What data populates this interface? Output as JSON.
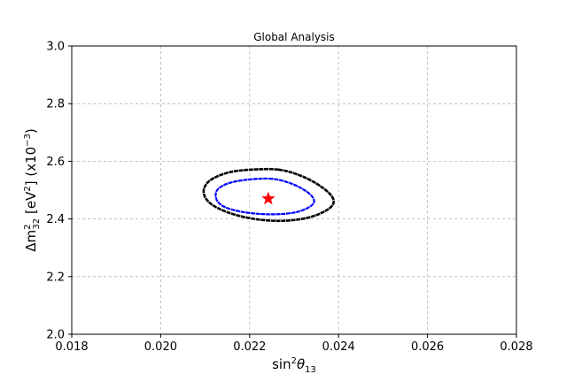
{
  "chart_data": {
    "type": "scatter",
    "title": "Global Analysis",
    "xlabel": {
      "base": "sin",
      "sup": "2",
      "sym": "θ",
      "sub": "13"
    },
    "ylabel": {
      "pre": "Δm",
      "sup": "2",
      "sub": "32",
      "unit": " [eV",
      "unit_sup": "2",
      "scale": "] (x10",
      "scale_sup": "−3",
      "close": ")"
    },
    "xlim": [
      0.018,
      0.028
    ],
    "ylim": [
      2.0,
      3.0
    ],
    "xticks": [
      0.018,
      0.02,
      0.022,
      0.024,
      0.026,
      0.028
    ],
    "xtick_labels": [
      "0.018",
      "0.020",
      "0.022",
      "0.024",
      "0.026",
      "0.028"
    ],
    "yticks": [
      2.0,
      2.2,
      2.4,
      2.6,
      2.8,
      3.0
    ],
    "ytick_labels": [
      "2.0",
      "2.2",
      "2.4",
      "2.6",
      "2.8",
      "3.0"
    ],
    "grid": true,
    "best_fit": {
      "x": 0.02242,
      "y": 2.47,
      "marker": "star",
      "color": "#ff0000"
    },
    "contours": [
      {
        "color": "#000000",
        "points": [
          [
            0.02265,
            2.571
          ],
          [
            0.02205,
            2.571
          ],
          [
            0.02155,
            2.562
          ],
          [
            0.02115,
            2.538
          ],
          [
            0.02098,
            2.508
          ],
          [
            0.021,
            2.475
          ],
          [
            0.0212,
            2.445
          ],
          [
            0.02162,
            2.417
          ],
          [
            0.0222,
            2.398
          ],
          [
            0.02282,
            2.394
          ],
          [
            0.0234,
            2.408
          ],
          [
            0.02382,
            2.44
          ],
          [
            0.02387,
            2.473
          ],
          [
            0.0236,
            2.513
          ],
          [
            0.02315,
            2.55
          ],
          [
            0.02265,
            2.571
          ]
        ]
      },
      {
        "color": "#0000ff",
        "points": [
          [
            0.02252,
            2.539
          ],
          [
            0.022,
            2.537
          ],
          [
            0.02155,
            2.525
          ],
          [
            0.02128,
            2.502
          ],
          [
            0.02125,
            2.47
          ],
          [
            0.02142,
            2.443
          ],
          [
            0.02185,
            2.424
          ],
          [
            0.02245,
            2.416
          ],
          [
            0.023,
            2.422
          ],
          [
            0.02335,
            2.442
          ],
          [
            0.02345,
            2.465
          ],
          [
            0.0233,
            2.493
          ],
          [
            0.02295,
            2.522
          ],
          [
            0.02252,
            2.539
          ]
        ]
      }
    ],
    "colors": {
      "grid": "#b0b0b0",
      "axes": "#000000",
      "star": "#ff0000",
      "outer": "#000000",
      "inner": "#0000ff"
    }
  }
}
